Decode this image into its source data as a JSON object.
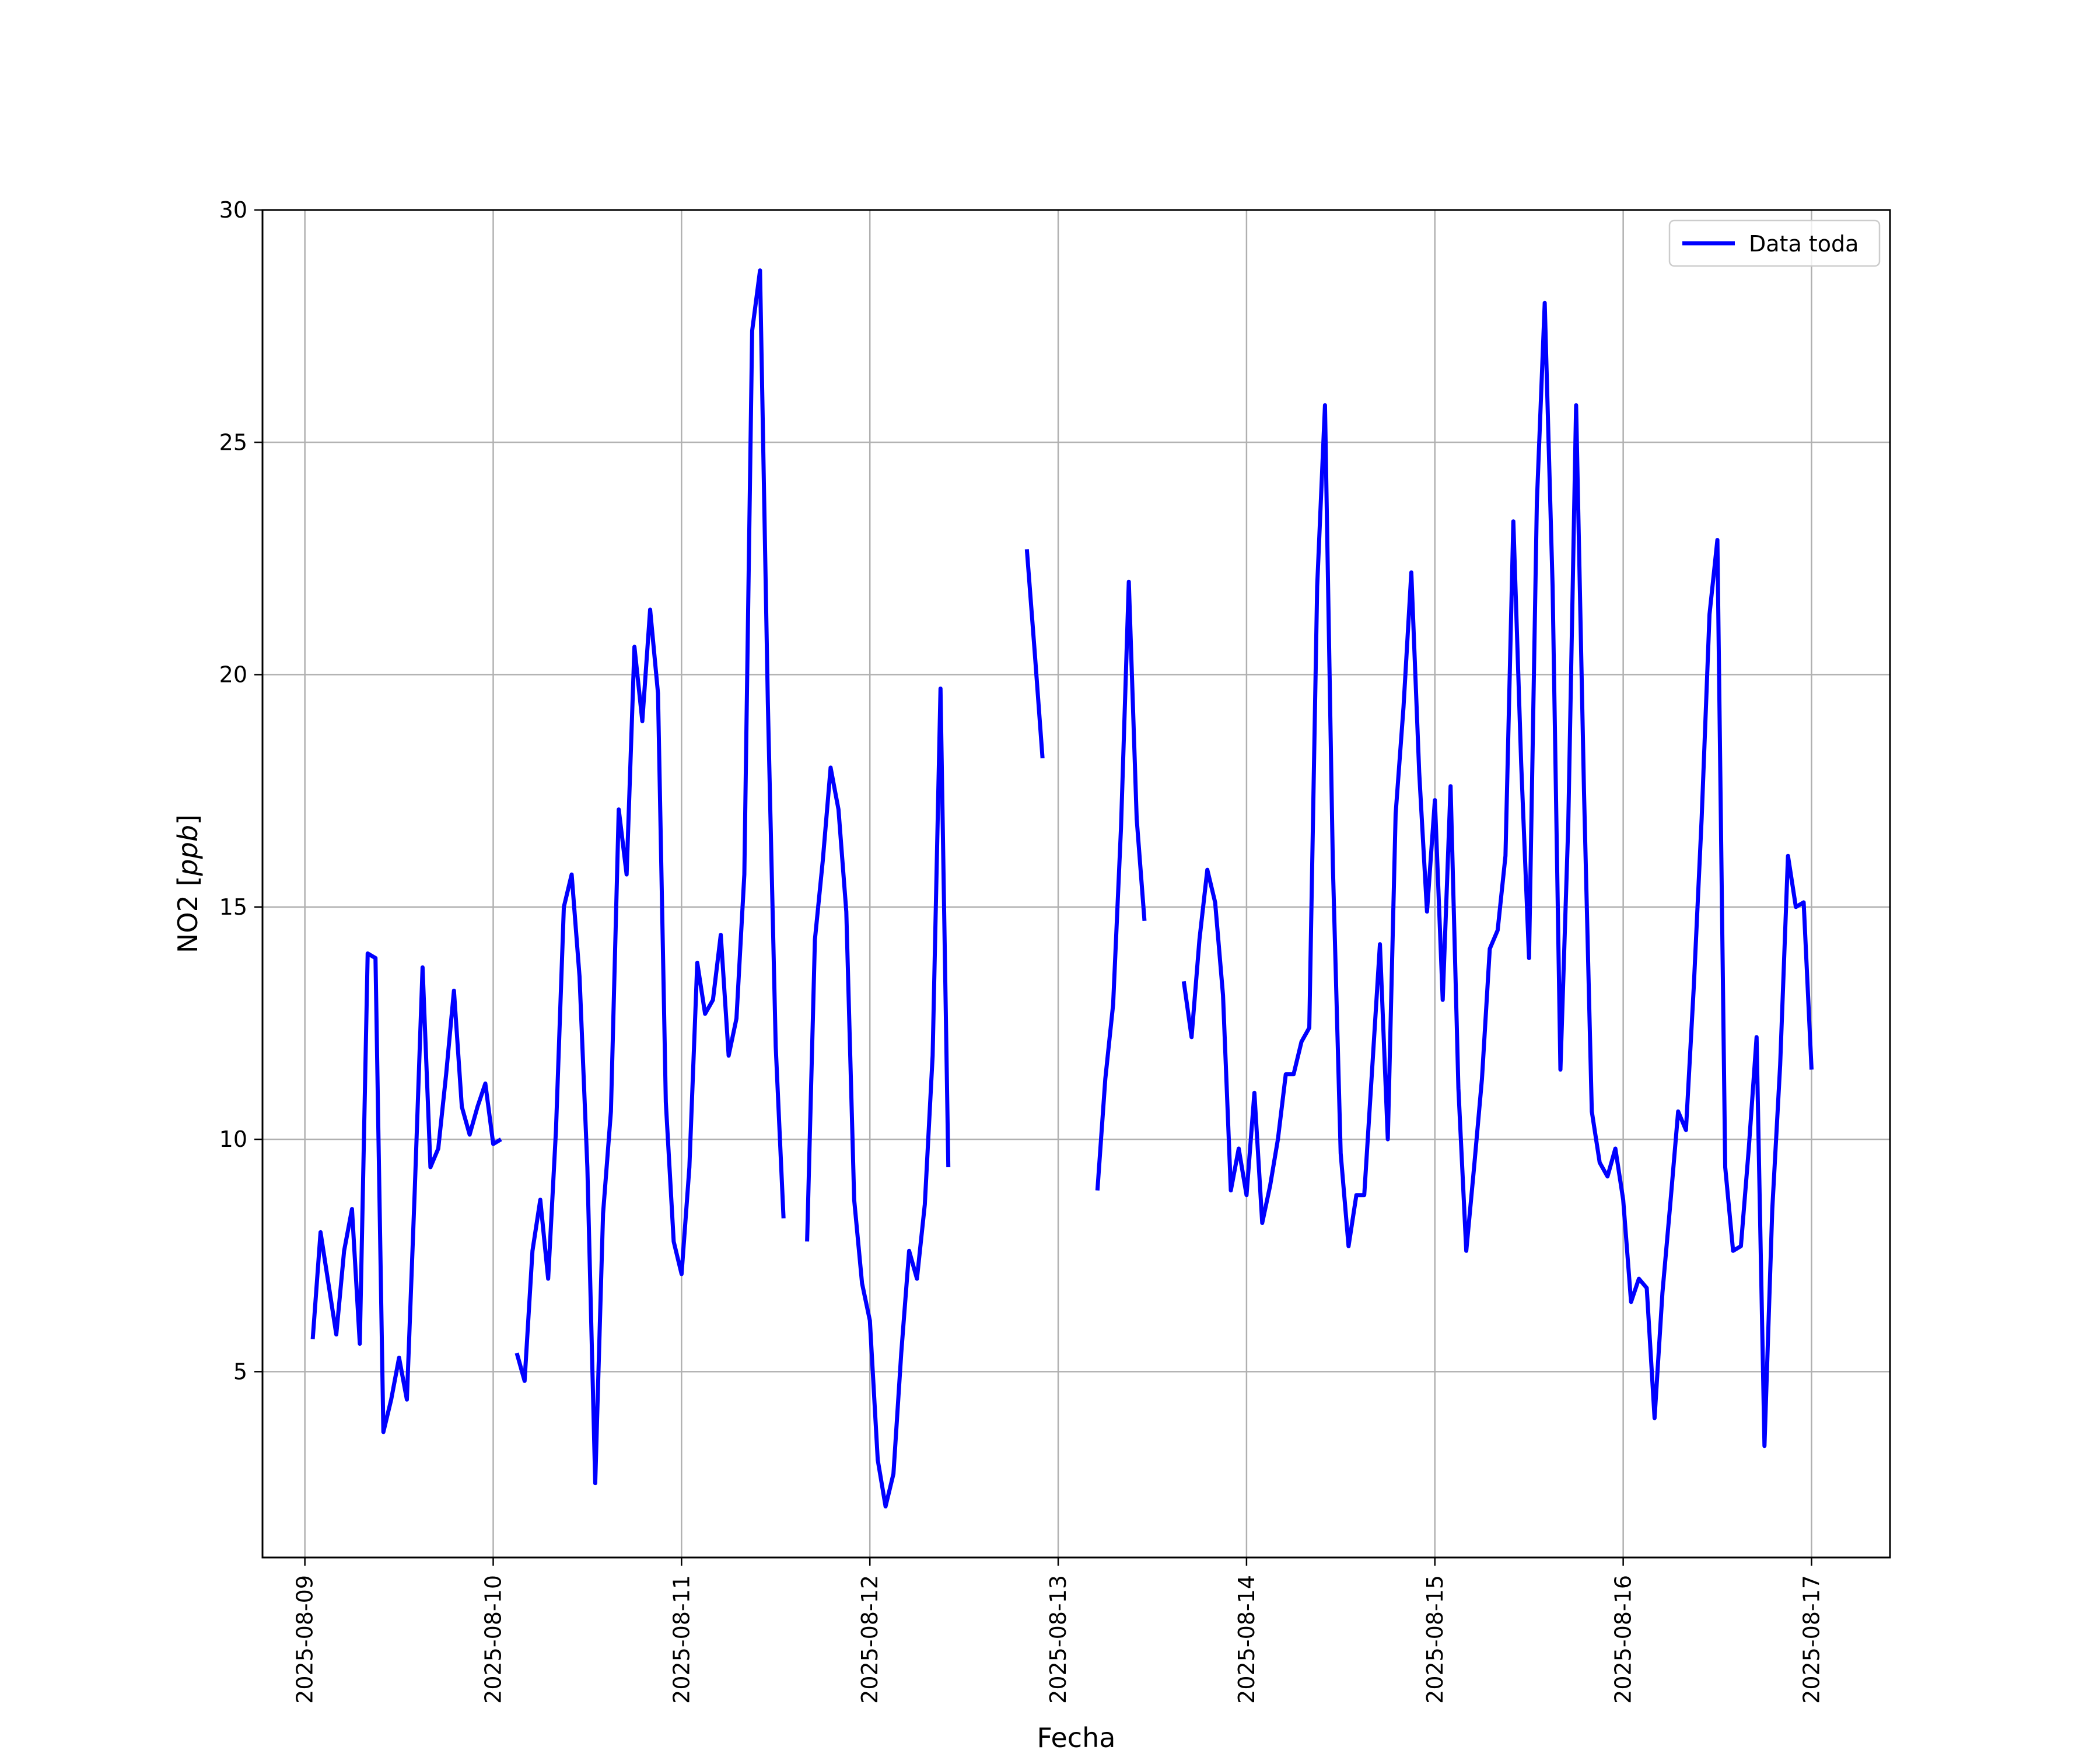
{
  "chart_data": {
    "type": "line",
    "xlabel": "Fecha",
    "ylabel": "NO2 [ppb]",
    "ylim": [
      1,
      30
    ],
    "yticks": [
      5,
      10,
      15,
      20,
      25,
      30
    ],
    "xlim": [
      "2025-08-08T18:36",
      "2025-08-17T10:00"
    ],
    "xticks": [
      "2025-08-09",
      "2025-08-10",
      "2025-08-11",
      "2025-08-12",
      "2025-08-13",
      "2025-08-14",
      "2025-08-15",
      "2025-08-16",
      "2025-08-17"
    ],
    "grid": true,
    "legend_position": "top-right",
    "series": [
      {
        "name": "Data toda",
        "color": "#0000ff",
        "segments": [
          [
            [
              "2025-08-09T01:00",
              5.7
            ],
            [
              "2025-08-09T02:00",
              8.0
            ],
            [
              "2025-08-09T03:00",
              6.9
            ],
            [
              "2025-08-09T04:00",
              5.8
            ],
            [
              "2025-08-09T05:00",
              7.6
            ],
            [
              "2025-08-09T06:00",
              8.5
            ],
            [
              "2025-08-09T07:00",
              5.6
            ],
            [
              "2025-08-09T08:00",
              14.0
            ],
            [
              "2025-08-09T09:00",
              13.9
            ],
            [
              "2025-08-09T10:00",
              3.7
            ],
            [
              "2025-08-09T11:00",
              4.4
            ],
            [
              "2025-08-09T12:00",
              5.3
            ],
            [
              "2025-08-09T13:00",
              4.4
            ],
            [
              "2025-08-09T14:00",
              8.9
            ],
            [
              "2025-08-09T15:00",
              13.7
            ],
            [
              "2025-08-09T16:00",
              9.4
            ],
            [
              "2025-08-09T17:00",
              9.8
            ],
            [
              "2025-08-09T18:00",
              11.4
            ],
            [
              "2025-08-09T19:00",
              13.2
            ],
            [
              "2025-08-09T20:00",
              10.7
            ],
            [
              "2025-08-09T21:00",
              10.1
            ],
            [
              "2025-08-09T22:00",
              10.7
            ],
            [
              "2025-08-09T23:00",
              11.2
            ],
            [
              "2025-08-10T00:00",
              9.9
            ],
            [
              "2025-08-10T01:00",
              10.0
            ]
          ],
          [
            [
              "2025-08-10T03:00",
              5.4
            ],
            [
              "2025-08-10T04:00",
              4.8
            ],
            [
              "2025-08-10T05:00",
              7.6
            ],
            [
              "2025-08-10T06:00",
              8.7
            ],
            [
              "2025-08-10T07:00",
              7.0
            ],
            [
              "2025-08-10T08:00",
              10.2
            ],
            [
              "2025-08-10T09:00",
              15.0
            ],
            [
              "2025-08-10T10:00",
              15.7
            ],
            [
              "2025-08-10T11:00",
              13.5
            ],
            [
              "2025-08-10T12:00",
              9.4
            ],
            [
              "2025-08-10T13:00",
              2.6
            ],
            [
              "2025-08-10T14:00",
              8.4
            ],
            [
              "2025-08-10T15:00",
              10.6
            ],
            [
              "2025-08-10T16:00",
              17.1
            ],
            [
              "2025-08-10T17:00",
              15.7
            ],
            [
              "2025-08-10T18:00",
              20.6
            ],
            [
              "2025-08-10T19:00",
              19.0
            ],
            [
              "2025-08-10T20:00",
              21.4
            ],
            [
              "2025-08-10T21:00",
              19.6
            ],
            [
              "2025-08-10T22:00",
              10.8
            ],
            [
              "2025-08-10T23:00",
              7.8
            ],
            [
              "2025-08-11T00:00",
              7.1
            ],
            [
              "2025-08-11T01:00",
              9.4
            ],
            [
              "2025-08-11T02:00",
              13.8
            ],
            [
              "2025-08-11T03:00",
              12.7
            ],
            [
              "2025-08-11T04:00",
              13.0
            ],
            [
              "2025-08-11T05:00",
              14.4
            ],
            [
              "2025-08-11T06:00",
              11.8
            ],
            [
              "2025-08-11T07:00",
              12.6
            ],
            [
              "2025-08-11T08:00",
              15.7
            ],
            [
              "2025-08-11T09:00",
              27.4
            ],
            [
              "2025-08-11T10:00",
              28.7
            ],
            [
              "2025-08-11T11:00",
              19.4
            ],
            [
              "2025-08-11T12:00",
              12.0
            ],
            [
              "2025-08-11T13:00",
              8.3
            ]
          ],
          [
            [
              "2025-08-11T16:00",
              7.8
            ],
            [
              "2025-08-11T17:00",
              14.3
            ],
            [
              "2025-08-11T18:00",
              16.0
            ],
            [
              "2025-08-11T19:00",
              18.0
            ],
            [
              "2025-08-11T20:00",
              17.1
            ],
            [
              "2025-08-11T21:00",
              14.9
            ],
            [
              "2025-08-11T22:00",
              8.7
            ],
            [
              "2025-08-11T23:00",
              6.9
            ],
            [
              "2025-08-12T00:00",
              6.1
            ],
            [
              "2025-08-12T01:00",
              3.1
            ],
            [
              "2025-08-12T02:00",
              2.1
            ],
            [
              "2025-08-12T03:00",
              2.8
            ],
            [
              "2025-08-12T04:00",
              5.4
            ],
            [
              "2025-08-12T05:00",
              7.6
            ],
            [
              "2025-08-12T06:00",
              7.0
            ],
            [
              "2025-08-12T07:00",
              8.6
            ],
            [
              "2025-08-12T08:00",
              11.8
            ],
            [
              "2025-08-12T09:00",
              19.7
            ],
            [
              "2025-08-12T10:00",
              9.4
            ]
          ],
          [
            [
              "2025-08-12T20:00",
              22.7
            ],
            [
              "2025-08-12T21:00",
              20.5
            ],
            [
              "2025-08-12T22:00",
              18.2
            ]
          ],
          [
            [
              "2025-08-13T05:00",
              8.9
            ],
            [
              "2025-08-13T06:00",
              11.3
            ],
            [
              "2025-08-13T07:00",
              12.9
            ],
            [
              "2025-08-13T08:00",
              16.7
            ],
            [
              "2025-08-13T09:00",
              22.0
            ],
            [
              "2025-08-13T10:00",
              16.9
            ],
            [
              "2025-08-13T11:00",
              14.7
            ]
          ],
          [
            [
              "2025-08-13T16:00",
              13.4
            ],
            [
              "2025-08-13T17:00",
              12.2
            ],
            [
              "2025-08-13T18:00",
              14.3
            ],
            [
              "2025-08-13T19:00",
              15.8
            ],
            [
              "2025-08-13T20:00",
              15.1
            ],
            [
              "2025-08-13T21:00",
              13.1
            ],
            [
              "2025-08-13T22:00",
              8.9
            ],
            [
              "2025-08-13T23:00",
              9.8
            ],
            [
              "2025-08-14T00:00",
              8.8
            ],
            [
              "2025-08-14T01:00",
              11.0
            ],
            [
              "2025-08-14T02:00",
              8.2
            ],
            [
              "2025-08-14T03:00",
              9.0
            ],
            [
              "2025-08-14T04:00",
              10.0
            ],
            [
              "2025-08-14T05:00",
              11.4
            ],
            [
              "2025-08-14T06:00",
              11.4
            ],
            [
              "2025-08-14T07:00",
              12.1
            ],
            [
              "2025-08-14T08:00",
              12.4
            ],
            [
              "2025-08-14T09:00",
              21.9
            ],
            [
              "2025-08-14T10:00",
              25.8
            ],
            [
              "2025-08-14T11:00",
              15.9
            ],
            [
              "2025-08-14T12:00",
              9.7
            ],
            [
              "2025-08-14T13:00",
              7.7
            ],
            [
              "2025-08-14T14:00",
              8.8
            ],
            [
              "2025-08-14T15:00",
              8.8
            ],
            [
              "2025-08-14T16:00",
              11.5
            ],
            [
              "2025-08-14T17:00",
              14.2
            ],
            [
              "2025-08-14T18:00",
              10.0
            ],
            [
              "2025-08-14T19:00",
              17.0
            ],
            [
              "2025-08-14T20:00",
              19.3
            ],
            [
              "2025-08-14T21:00",
              22.2
            ],
            [
              "2025-08-14T22:00",
              17.9
            ],
            [
              "2025-08-14T23:00",
              14.9
            ],
            [
              "2025-08-15T00:00",
              17.3
            ],
            [
              "2025-08-15T01:00",
              13.0
            ],
            [
              "2025-08-15T02:00",
              17.6
            ],
            [
              "2025-08-15T03:00",
              11.1
            ],
            [
              "2025-08-15T04:00",
              7.6
            ],
            [
              "2025-08-15T05:00",
              9.4
            ],
            [
              "2025-08-15T06:00",
              11.3
            ],
            [
              "2025-08-15T07:00",
              14.1
            ],
            [
              "2025-08-15T08:00",
              14.5
            ],
            [
              "2025-08-15T09:00",
              16.1
            ],
            [
              "2025-08-15T10:00",
              23.3
            ],
            [
              "2025-08-15T11:00",
              18.1
            ],
            [
              "2025-08-15T12:00",
              13.9
            ],
            [
              "2025-08-15T13:00",
              23.7
            ],
            [
              "2025-08-15T14:00",
              28.0
            ],
            [
              "2025-08-15T15:00",
              21.9
            ],
            [
              "2025-08-15T16:00",
              11.5
            ],
            [
              "2025-08-15T17:00",
              16.8
            ],
            [
              "2025-08-15T18:00",
              25.8
            ],
            [
              "2025-08-15T19:00",
              17.5
            ],
            [
              "2025-08-15T20:00",
              10.6
            ],
            [
              "2025-08-15T21:00",
              9.5
            ],
            [
              "2025-08-15T22:00",
              9.2
            ],
            [
              "2025-08-15T23:00",
              9.8
            ],
            [
              "2025-08-16T00:00",
              8.7
            ],
            [
              "2025-08-16T01:00",
              6.5
            ],
            [
              "2025-08-16T02:00",
              7.0
            ],
            [
              "2025-08-16T03:00",
              6.8
            ],
            [
              "2025-08-16T04:00",
              4.0
            ],
            [
              "2025-08-16T05:00",
              6.7
            ],
            [
              "2025-08-16T06:00",
              8.6
            ],
            [
              "2025-08-16T07:00",
              10.6
            ],
            [
              "2025-08-16T08:00",
              10.2
            ],
            [
              "2025-08-16T09:00",
              13.3
            ],
            [
              "2025-08-16T10:00",
              16.9
            ],
            [
              "2025-08-16T11:00",
              21.3
            ],
            [
              "2025-08-16T12:00",
              22.9
            ],
            [
              "2025-08-16T13:00",
              9.4
            ],
            [
              "2025-08-16T14:00",
              7.6
            ],
            [
              "2025-08-16T15:00",
              7.7
            ],
            [
              "2025-08-16T16:00",
              9.8
            ],
            [
              "2025-08-16T17:00",
              12.2
            ],
            [
              "2025-08-16T18:00",
              3.4
            ],
            [
              "2025-08-16T19:00",
              8.5
            ],
            [
              "2025-08-16T20:00",
              11.6
            ],
            [
              "2025-08-16T21:00",
              16.1
            ],
            [
              "2025-08-16T22:00",
              15.0
            ],
            [
              "2025-08-16T23:00",
              15.1
            ],
            [
              "2025-08-17T00:00",
              11.5
            ]
          ]
        ]
      }
    ]
  }
}
